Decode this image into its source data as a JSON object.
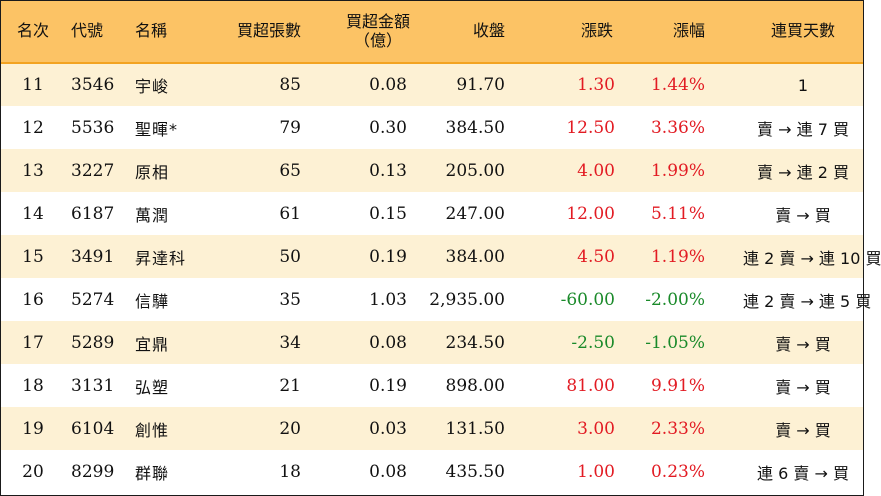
{
  "header": {
    "rank": "名次",
    "code": "代號",
    "name": "名稱",
    "net_buy_lots": "買超張數",
    "net_buy_amount_line1": "買超金額",
    "net_buy_amount_line2": "（億）",
    "close": "收盤",
    "change": "漲跌",
    "change_pct": "漲幅",
    "consecutive_days": "連買天數"
  },
  "colors": {
    "header_bg": "#fcc365",
    "row_stripe": "#fdf1d4",
    "up": "#e21b23",
    "down": "#1a8a2a"
  },
  "rows": [
    {
      "rank": "11",
      "code": "3546",
      "name": "宇峻",
      "lots": "85",
      "amount": "0.08",
      "close": "91.70",
      "change": "1.30",
      "pct": "1.44%",
      "direction": "up",
      "streak": "1"
    },
    {
      "rank": "12",
      "code": "5536",
      "name": "聖暉*",
      "lots": "79",
      "amount": "0.30",
      "close": "384.50",
      "change": "12.50",
      "pct": "3.36%",
      "direction": "up",
      "streak": "賣 → 連 7 買"
    },
    {
      "rank": "13",
      "code": "3227",
      "name": "原相",
      "lots": "65",
      "amount": "0.13",
      "close": "205.00",
      "change": "4.00",
      "pct": "1.99%",
      "direction": "up",
      "streak": "賣 → 連 2 買"
    },
    {
      "rank": "14",
      "code": "6187",
      "name": "萬潤",
      "lots": "61",
      "amount": "0.15",
      "close": "247.00",
      "change": "12.00",
      "pct": "5.11%",
      "direction": "up",
      "streak": "賣 → 買"
    },
    {
      "rank": "15",
      "code": "3491",
      "name": "昇達科",
      "lots": "50",
      "amount": "0.19",
      "close": "384.00",
      "change": "4.50",
      "pct": "1.19%",
      "direction": "up",
      "streak": "連 2 賣 → 連 10 買"
    },
    {
      "rank": "16",
      "code": "5274",
      "name": "信驊",
      "lots": "35",
      "amount": "1.03",
      "close": "2,935.00",
      "change": "-60.00",
      "pct": "-2.00%",
      "direction": "down",
      "streak": "連 2 賣 → 連 5 買"
    },
    {
      "rank": "17",
      "code": "5289",
      "name": "宜鼎",
      "lots": "34",
      "amount": "0.08",
      "close": "234.50",
      "change": "-2.50",
      "pct": "-1.05%",
      "direction": "down",
      "streak": "賣 → 買"
    },
    {
      "rank": "18",
      "code": "3131",
      "name": "弘塑",
      "lots": "21",
      "amount": "0.19",
      "close": "898.00",
      "change": "81.00",
      "pct": "9.91%",
      "direction": "up",
      "streak": "賣 → 買"
    },
    {
      "rank": "19",
      "code": "6104",
      "name": "創惟",
      "lots": "20",
      "amount": "0.03",
      "close": "131.50",
      "change": "3.00",
      "pct": "2.33%",
      "direction": "up",
      "streak": "賣 → 買"
    },
    {
      "rank": "20",
      "code": "8299",
      "name": "群聯",
      "lots": "18",
      "amount": "0.08",
      "close": "435.50",
      "change": "1.00",
      "pct": "0.23%",
      "direction": "up",
      "streak": "連 6 賣 → 買"
    }
  ]
}
